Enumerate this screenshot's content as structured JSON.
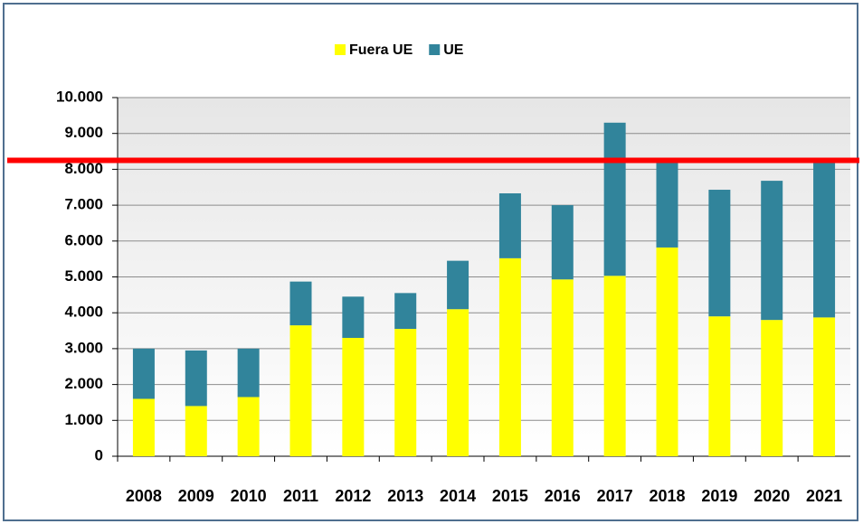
{
  "chart_data": {
    "type": "stacked_bar",
    "categories": [
      "2008",
      "2009",
      "2010",
      "2011",
      "2012",
      "2013",
      "2014",
      "2015",
      "2016",
      "2017",
      "2018",
      "2019",
      "2020",
      "2021"
    ],
    "series": [
      {
        "name": "Fuera UE",
        "color": "#ffff00",
        "values": [
          1600,
          1400,
          1650,
          3650,
          3300,
          3550,
          4100,
          5520,
          4930,
          5030,
          5820,
          3900,
          3800,
          3870
        ]
      },
      {
        "name": "UE",
        "color": "#31849b",
        "values": [
          1400,
          1550,
          1350,
          1220,
          1150,
          1000,
          1350,
          1810,
          2070,
          4270,
          2380,
          3530,
          3880,
          4310
        ]
      }
    ],
    "ylim": [
      0,
      10000
    ],
    "yticks": [
      0,
      {
        "value": 1000,
        "label": "1.000"
      },
      {
        "value": 2000,
        "label": "2.000"
      },
      {
        "value": 3000,
        "label": "3.000"
      },
      {
        "value": 4000,
        "label": "4.000"
      },
      {
        "value": 5000,
        "label": "5.000"
      },
      {
        "value": 6000,
        "label": "6.000"
      },
      {
        "value": 7000,
        "label": "7.000"
      },
      {
        "value": 8000,
        "label": "8.000"
      },
      {
        "value": 9000,
        "label": "9.000"
      },
      {
        "value": 10000,
        "label": "10.000"
      }
    ],
    "grid": true,
    "legend": "top",
    "reference_line": {
      "value": 8250,
      "color": "#ff0000"
    }
  }
}
